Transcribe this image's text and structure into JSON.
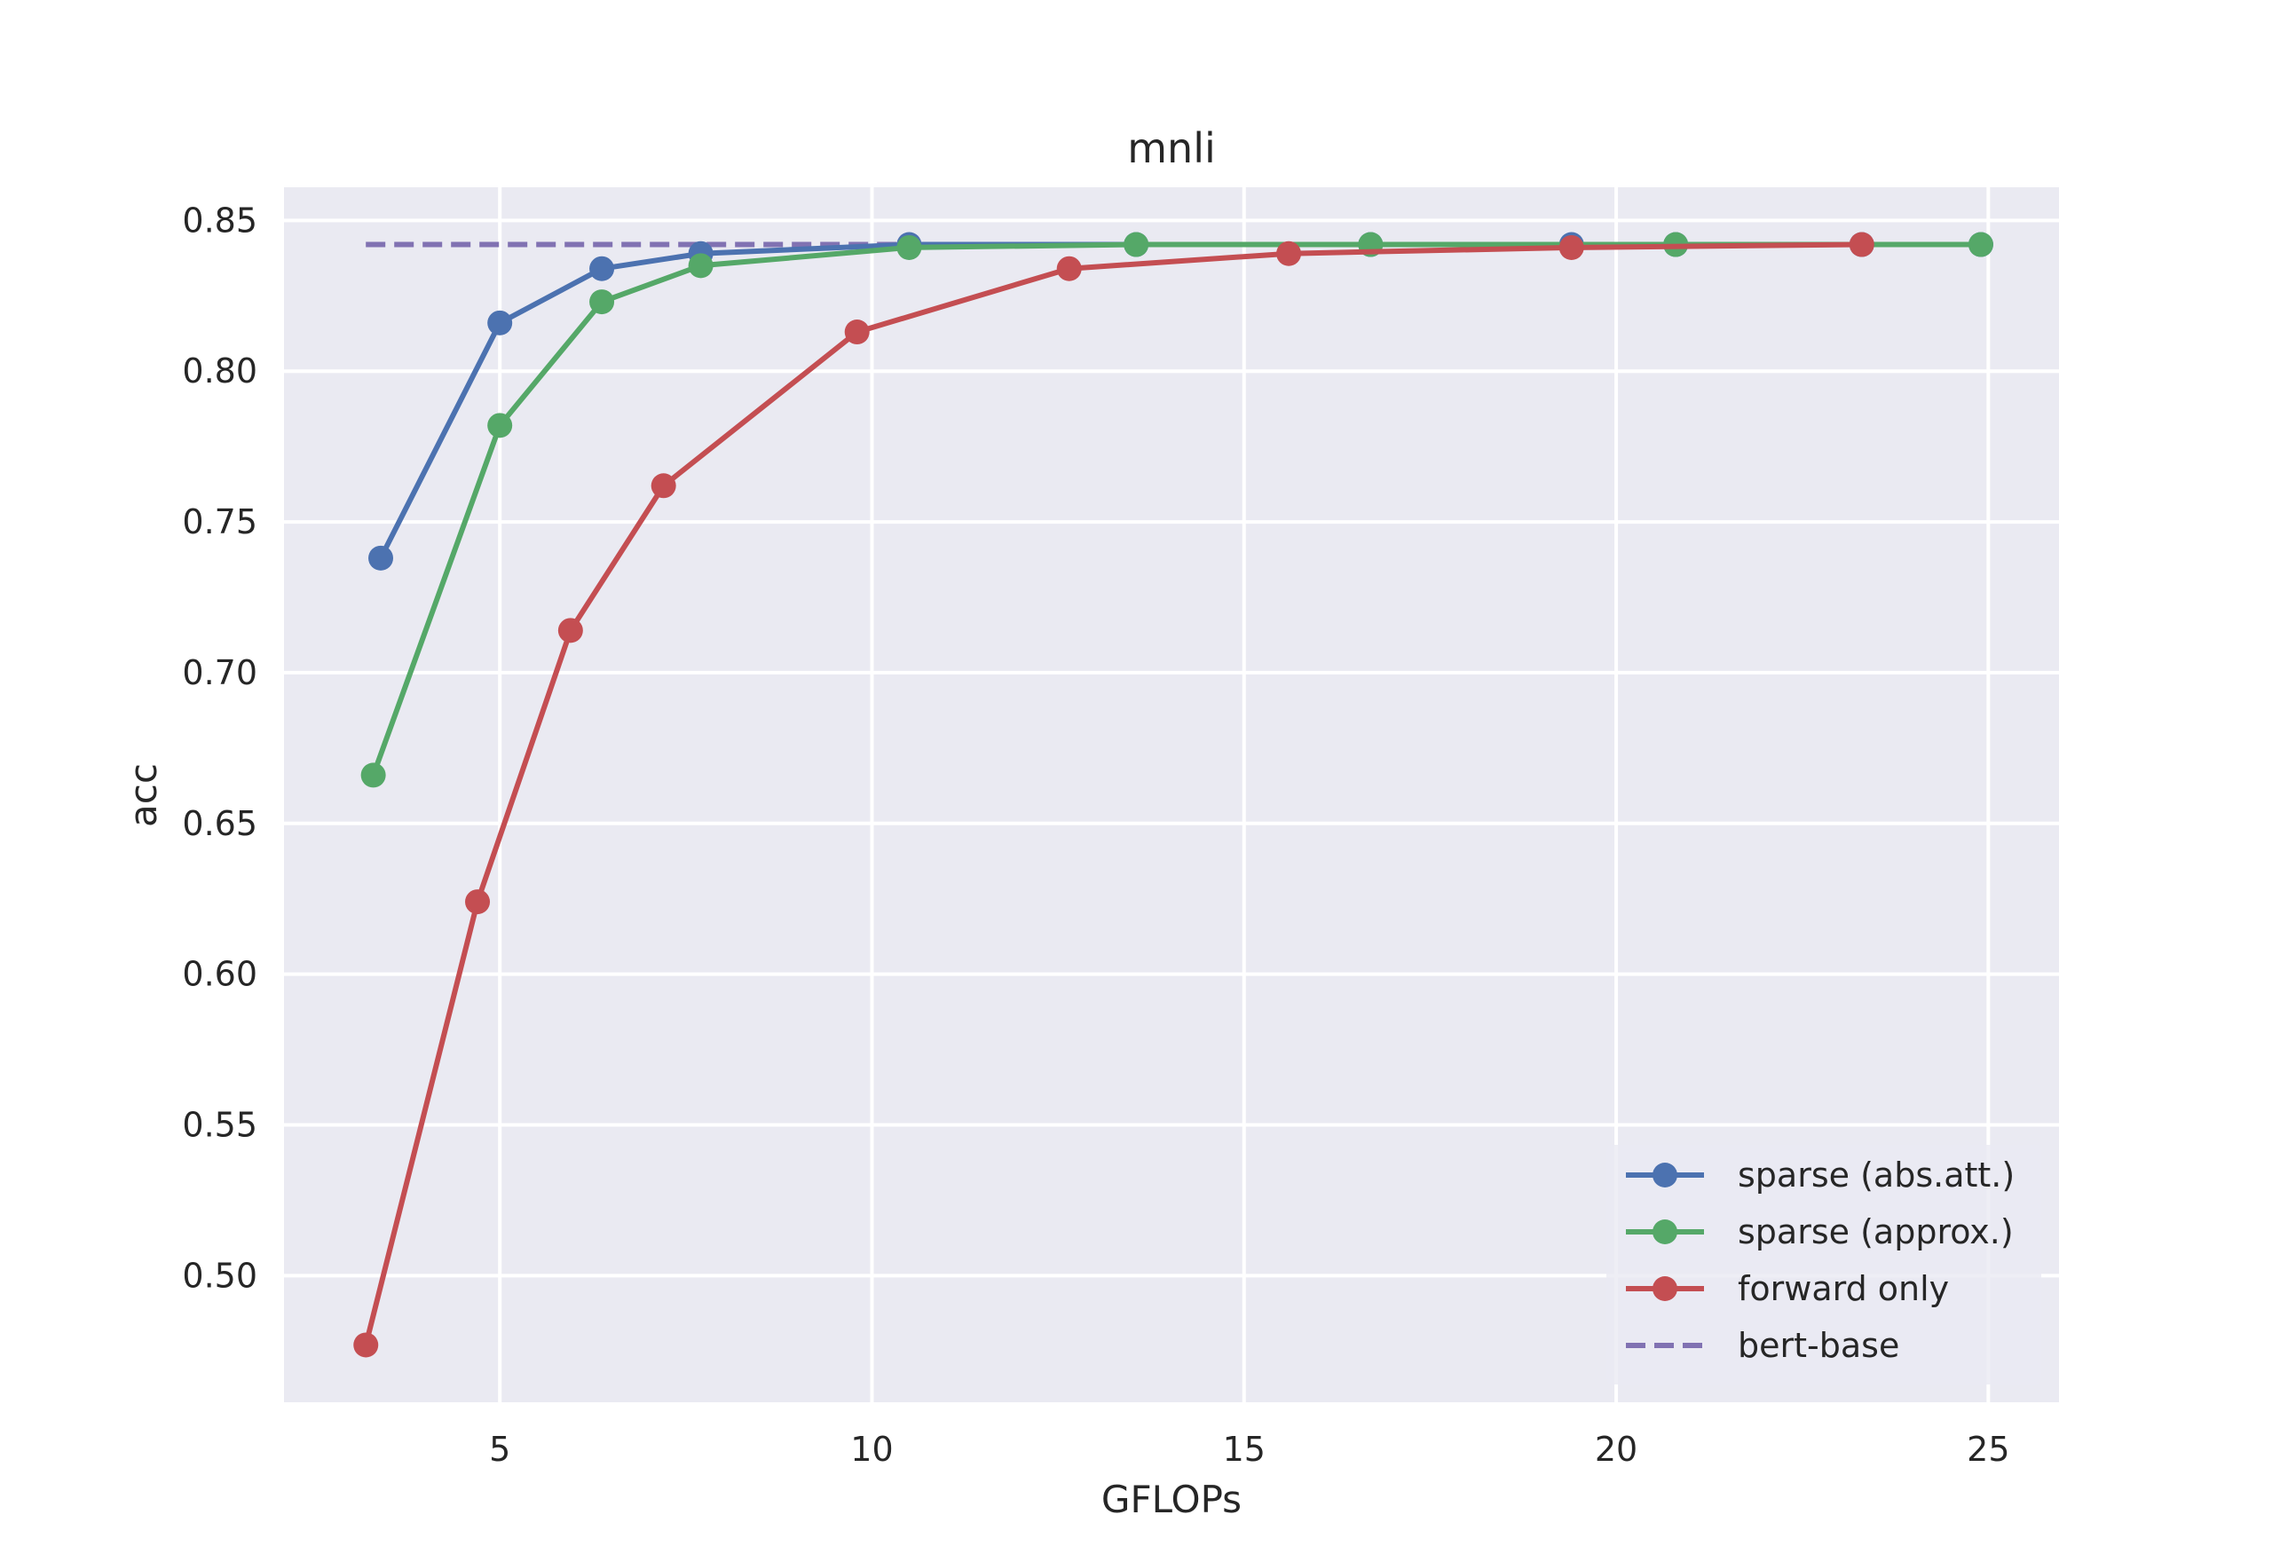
{
  "chart_data": {
    "type": "line",
    "title": "mnli",
    "xlabel": "GFLOPs",
    "ylabel": "acc",
    "xlim": [
      2.1,
      25.95
    ],
    "ylim": [
      0.458,
      0.861
    ],
    "xticks": [
      5,
      10,
      15,
      20,
      25
    ],
    "yticks": [
      0.5,
      0.55,
      0.6,
      0.65,
      0.7,
      0.75,
      0.8,
      0.85
    ],
    "grid": true,
    "legend_position": "lower-right",
    "colors": {
      "background": "#EAEAF2",
      "grid": "#FFFFFF",
      "text": "#262626"
    },
    "series": [
      {
        "name": "sparse (abs.att.)",
        "color": "#4C72B0",
        "style": "solid-marker",
        "x": [
          3.4,
          5.0,
          6.37,
          7.7,
          10.5,
          13.55,
          16.7,
          19.4,
          20.8,
          23.3,
          24.9
        ],
        "y": [
          0.738,
          0.816,
          0.834,
          0.839,
          0.842,
          0.842,
          0.842,
          0.842,
          0.842,
          0.842,
          0.842
        ]
      },
      {
        "name": "sparse (approx.)",
        "color": "#55A868",
        "style": "solid-marker",
        "x": [
          3.3,
          5.0,
          6.37,
          7.7,
          10.5,
          13.55,
          16.7,
          20.8,
          24.9
        ],
        "y": [
          0.666,
          0.782,
          0.823,
          0.835,
          0.841,
          0.842,
          0.842,
          0.842,
          0.842
        ]
      },
      {
        "name": "forward only",
        "color": "#C44E52",
        "style": "solid-marker",
        "x": [
          3.2,
          4.7,
          5.95,
          7.2,
          9.8,
          12.65,
          15.6,
          19.4,
          23.3
        ],
        "y": [
          0.477,
          0.624,
          0.714,
          0.762,
          0.813,
          0.834,
          0.839,
          0.841,
          0.842
        ]
      },
      {
        "name": "bert-base",
        "color": "#8172B2",
        "style": "dashed",
        "x": [
          3.2,
          24.9
        ],
        "y": [
          0.842,
          0.842
        ]
      }
    ]
  }
}
